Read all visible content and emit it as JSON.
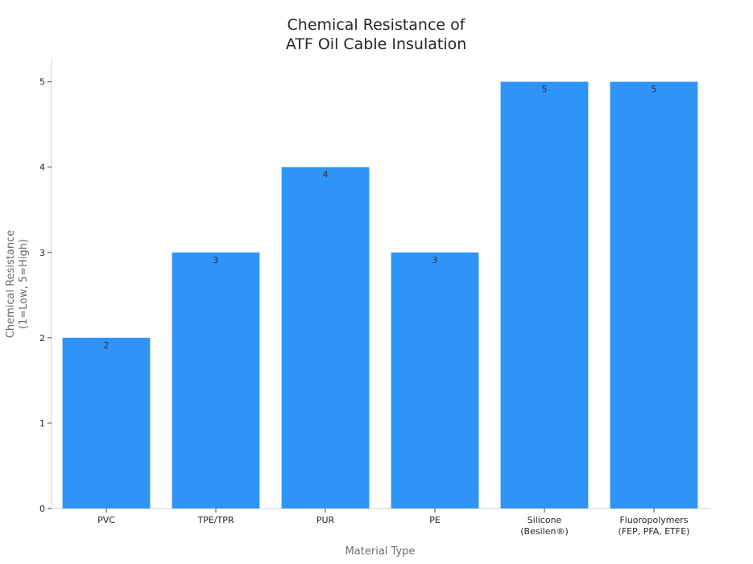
{
  "chart_data": {
    "type": "bar",
    "title": [
      "Chemical Resistance of",
      "ATF Oil Cable Insulation"
    ],
    "xlabel": "Material Type",
    "ylabel": [
      "Chemical Resistance",
      "(1=Low, 5=High)"
    ],
    "categories": [
      [
        "PVC"
      ],
      [
        "TPE/TPR"
      ],
      [
        "PUR"
      ],
      [
        "PE"
      ],
      [
        "Silicone",
        "(Besilen®)"
      ],
      [
        "Fluoropolymers",
        "(FEP, PFA, ETFE)"
      ]
    ],
    "values": [
      2,
      3,
      4,
      3,
      5,
      5
    ],
    "data_labels": [
      "2",
      "3",
      "4",
      "3",
      "5",
      "5"
    ],
    "yticks": [
      0,
      1,
      2,
      3,
      4,
      5
    ],
    "ylim": [
      0,
      5.27
    ],
    "grid": false,
    "colors": {
      "bar": "#2f94f8",
      "text": "#262626",
      "axis_label": "#6b6b6b"
    }
  }
}
